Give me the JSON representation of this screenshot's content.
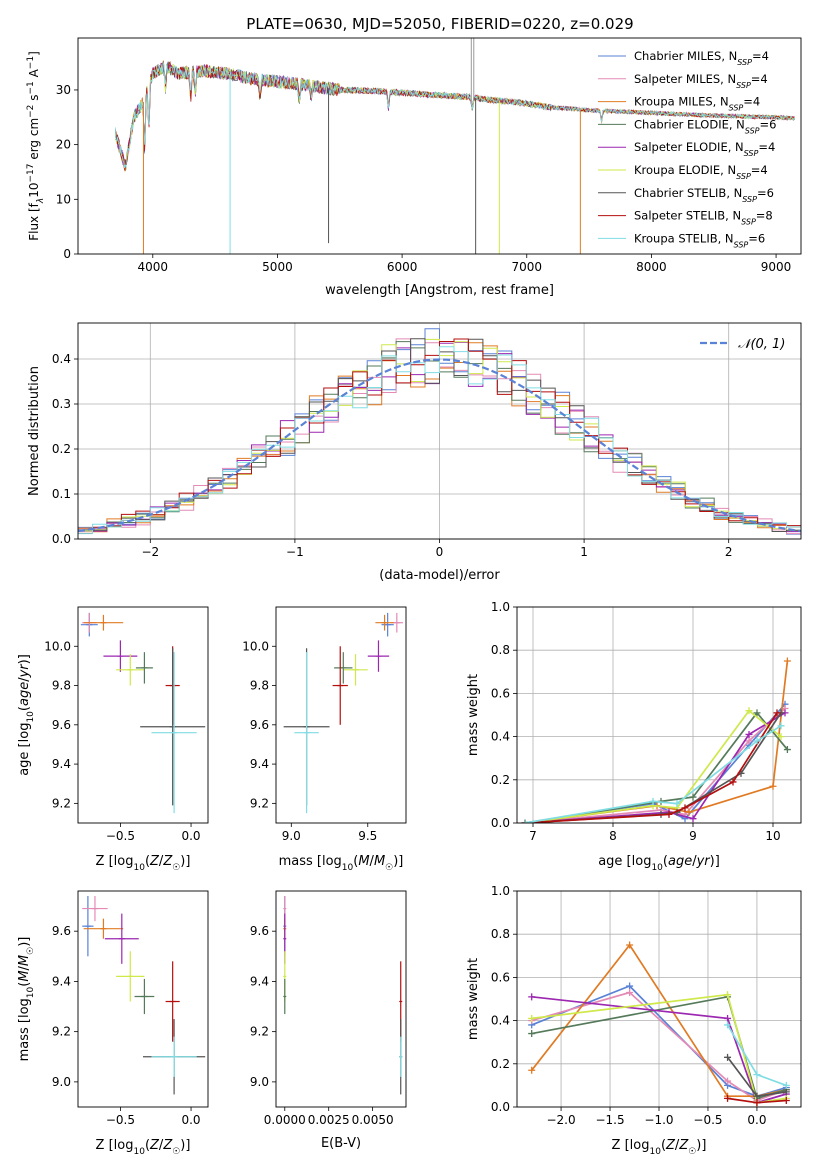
{
  "figure_title": "PLATE=0630, MJD=52050, FIBERID=0220, z=0.029",
  "palette": {
    "Chabrier MILES": "#5a82d6",
    "Salpeter MILES": "#e48ab5",
    "Kroupa MILES": "#e07b24",
    "Chabrier ELODIE": "#557a5a",
    "Salpeter ELODIE": "#9c27b0",
    "Kroupa ELODIE": "#cfe84a",
    "Chabrier STELIB": "#555555",
    "Salpeter STELIB": "#b30f0f",
    "Kroupa STELIB": "#80dde3"
  },
  "chart_data": [
    {
      "id": "spectrum",
      "type": "line",
      "xlabel": "wavelength [Angstrom, rest frame]",
      "ylabel": "Flux [f_λ 10^-17 erg cm^-2 s^-1 A^-1]",
      "xlim": [
        3400,
        9200
      ],
      "ylim": [
        0,
        39.5
      ],
      "xticks": [
        4000,
        5000,
        6000,
        7000,
        8000,
        9000
      ],
      "yticks": [
        0,
        10,
        20,
        30
      ],
      "grid": false,
      "legend_position": "top-right",
      "series": [
        {
          "name": "Chabrier MILES",
          "nssp": "4"
        },
        {
          "name": "Salpeter MILES",
          "nssp": "4"
        },
        {
          "name": "Kroupa MILES",
          "nssp": "4"
        },
        {
          "name": "Chabrier ELODIE",
          "nssp": "6"
        },
        {
          "name": "Salpeter ELODIE",
          "nssp": "4"
        },
        {
          "name": "Kroupa ELODIE",
          "nssp": "4"
        },
        {
          "name": "Chabrier STELIB",
          "nssp": "6"
        },
        {
          "name": "Salpeter STELIB",
          "nssp": "8"
        },
        {
          "name": "Kroupa STELIB",
          "nssp": "6"
        }
      ],
      "continuum": {
        "x": [
          3700,
          3780,
          3850,
          3930,
          4000,
          4100,
          4200,
          4400,
          4600,
          4800,
          5000,
          5200,
          5500,
          5800,
          6000,
          6300,
          6500,
          6700,
          6900,
          7000,
          7200,
          7400,
          7500,
          7800,
          8000,
          8500,
          9000,
          9150
        ],
        "y": [
          22,
          16,
          25,
          28,
          33,
          34.5,
          33,
          33.5,
          33,
          32,
          31.5,
          31,
          30,
          29.8,
          29.5,
          29,
          28.8,
          28.2,
          27.8,
          27.5,
          26.8,
          26.5,
          26.3,
          26,
          25.8,
          25.3,
          25,
          24.8
        ]
      },
      "spikes": [
        {
          "x": 3925,
          "y": 0,
          "series": "Kroupa MILES"
        },
        {
          "x": 4620,
          "y": 0,
          "series": "Kroupa STELIB"
        },
        {
          "x": 5410,
          "y": 2,
          "series": "Chabrier STELIB"
        },
        {
          "x": 6590,
          "y": 0,
          "series": "Chabrier STELIB"
        },
        {
          "x": 6780,
          "y": 0,
          "series": "Kroupa ELODIE"
        },
        {
          "x": 7430,
          "y": 0,
          "series": "Kroupa MILES"
        }
      ]
    },
    {
      "id": "residual-histogram",
      "type": "histogram",
      "xlabel": "(data-model)/error",
      "ylabel": "Normed distribution",
      "xlim": [
        -2.5,
        2.5
      ],
      "ylim": [
        0,
        0.48
      ],
      "xticks": [
        -2,
        -1,
        0,
        1,
        2
      ],
      "yticks": [
        0.0,
        0.1,
        0.2,
        0.3,
        0.4
      ],
      "grid": true,
      "legend_position": "top-right",
      "reference_curve": {
        "name": "𝒩(0, 1)",
        "function": "standard normal pdf"
      },
      "bin_width": 0.1
    },
    {
      "id": "age-vs-Z",
      "type": "errorbar",
      "xlabel": "Z [log10(Z/Z☉)]",
      "ylabel": "age [log10(age/yr)]",
      "xlim": [
        -0.8,
        0.12
      ],
      "ylim": [
        9.1,
        10.2
      ],
      "xticks": [
        -0.5,
        0.0
      ],
      "yticks": [
        9.2,
        9.4,
        9.6,
        9.8,
        10.0
      ],
      "grid": false,
      "points": [
        {
          "series": "Chabrier MILES",
          "x": -0.72,
          "y": 10.11,
          "xerr": 0.06,
          "yerr": 0.06
        },
        {
          "series": "Salpeter MILES",
          "x": -0.72,
          "y": 10.12,
          "xerr": 0.05,
          "yerr": 0.05
        },
        {
          "series": "Kroupa MILES",
          "x": -0.62,
          "y": 10.12,
          "xerr": 0.14,
          "yerr": 0.04
        },
        {
          "series": "Salpeter ELODIE",
          "x": -0.5,
          "y": 9.95,
          "xerr": 0.12,
          "yerr": 0.08
        },
        {
          "series": "Kroupa ELODIE",
          "x": -0.43,
          "y": 9.88,
          "xerr": 0.1,
          "yerr": 0.08
        },
        {
          "series": "Chabrier ELODIE",
          "x": -0.33,
          "y": 9.89,
          "xerr": 0.06,
          "yerr": 0.08
        },
        {
          "series": "Salpeter STELIB",
          "x": -0.13,
          "y": 9.8,
          "xerr": 0.05,
          "yerr": 0.2
        },
        {
          "series": "Chabrier STELIB",
          "x": -0.13,
          "y": 9.59,
          "xerr": 0.23,
          "yerr": 0.4
        },
        {
          "series": "Kroupa STELIB",
          "x": -0.12,
          "y": 9.56,
          "xerr": 0.16,
          "yerr": 0.41
        }
      ]
    },
    {
      "id": "age-vs-mass",
      "type": "errorbar",
      "xlabel": "mass [log10(M/M☉)]",
      "ylabel": "",
      "xlim": [
        8.9,
        9.75
      ],
      "ylim": [
        9.1,
        10.2
      ],
      "xticks": [
        9.0,
        9.5
      ],
      "yticks": [
        9.2,
        9.4,
        9.6,
        9.8,
        10.0
      ],
      "grid": false,
      "points": [
        {
          "series": "Chabrier MILES",
          "x": 9.63,
          "y": 10.11,
          "xerr": 0.04,
          "yerr": 0.06
        },
        {
          "series": "Salpeter MILES",
          "x": 9.69,
          "y": 10.12,
          "xerr": 0.04,
          "yerr": 0.05
        },
        {
          "series": "Kroupa MILES",
          "x": 9.61,
          "y": 10.12,
          "xerr": 0.06,
          "yerr": 0.04
        },
        {
          "series": "Salpeter ELODIE",
          "x": 9.57,
          "y": 9.95,
          "xerr": 0.07,
          "yerr": 0.08
        },
        {
          "series": "Kroupa ELODIE",
          "x": 9.42,
          "y": 9.88,
          "xerr": 0.08,
          "yerr": 0.08
        },
        {
          "series": "Chabrier ELODIE",
          "x": 9.34,
          "y": 9.89,
          "xerr": 0.06,
          "yerr": 0.08
        },
        {
          "series": "Salpeter STELIB",
          "x": 9.32,
          "y": 9.8,
          "xerr": 0.05,
          "yerr": 0.2
        },
        {
          "series": "Chabrier STELIB",
          "x": 9.1,
          "y": 9.59,
          "xerr": 0.15,
          "yerr": 0.4
        },
        {
          "series": "Kroupa STELIB",
          "x": 9.1,
          "y": 9.56,
          "xerr": 0.08,
          "yerr": 0.41
        }
      ]
    },
    {
      "id": "mass-weight-vs-age",
      "type": "line",
      "xlabel": "age [log10(age/yr)]",
      "ylabel": "mass weight",
      "xlim": [
        6.8,
        10.35
      ],
      "ylim": [
        0,
        1.0
      ],
      "xticks": [
        7,
        8,
        9,
        10
      ],
      "yticks": [
        0.0,
        0.2,
        0.4,
        0.6,
        0.8,
        1.0
      ],
      "grid": true,
      "series": [
        {
          "name": "Chabrier MILES",
          "x": [
            6.9,
            8.5,
            8.9,
            9.7,
            10.15
          ],
          "y": [
            0.0,
            0.09,
            0.02,
            0.36,
            0.55
          ]
        },
        {
          "name": "Salpeter MILES",
          "x": [
            6.9,
            8.6,
            8.9,
            9.7,
            10.15
          ],
          "y": [
            0.0,
            0.06,
            0.04,
            0.38,
            0.53
          ]
        },
        {
          "name": "Kroupa MILES",
          "x": [
            6.9,
            8.55,
            8.95,
            10.0,
            10.18
          ],
          "y": [
            0.0,
            0.08,
            0.05,
            0.17,
            0.75
          ]
        },
        {
          "name": "Chabrier ELODIE",
          "x": [
            6.9,
            8.6,
            9.0,
            9.8,
            10.18
          ],
          "y": [
            0.0,
            0.1,
            0.12,
            0.51,
            0.34
          ]
        },
        {
          "name": "Salpeter ELODIE",
          "x": [
            6.9,
            8.7,
            9.0,
            9.7,
            10.15
          ],
          "y": [
            0.0,
            0.05,
            0.02,
            0.41,
            0.51
          ]
        },
        {
          "name": "Kroupa ELODIE",
          "x": [
            6.9,
            8.5,
            8.8,
            9.7,
            10.1
          ],
          "y": [
            0.0,
            0.08,
            0.07,
            0.52,
            0.4
          ]
        },
        {
          "name": "Chabrier STELIB",
          "x": [
            6.9,
            8.6,
            8.8,
            9.6,
            10.1
          ],
          "y": [
            0.0,
            0.04,
            0.05,
            0.23,
            0.51
          ]
        },
        {
          "name": "Salpeter STELIB",
          "x": [
            6.9,
            8.7,
            8.9,
            9.5,
            10.05
          ],
          "y": [
            0.0,
            0.04,
            0.07,
            0.19,
            0.51
          ]
        },
        {
          "name": "Kroupa STELIB",
          "x": [
            6.9,
            8.5,
            8.8,
            9.8,
            10.1
          ],
          "y": [
            0.0,
            0.1,
            0.09,
            0.38,
            0.45
          ]
        }
      ]
    },
    {
      "id": "mass-vs-Z",
      "type": "errorbar",
      "xlabel": "Z [log10(Z/Z☉)]",
      "ylabel": "mass [log10(M/M☉)]",
      "xlim": [
        -0.8,
        0.12
      ],
      "ylim": [
        8.9,
        9.76
      ],
      "xticks": [
        -0.5,
        0.0
      ],
      "yticks": [
        9.0,
        9.2,
        9.4,
        9.6
      ],
      "grid": false,
      "points": [
        {
          "series": "Chabrier MILES",
          "x": -0.73,
          "y": 9.62,
          "xerr": 0.04,
          "yerr": 0.12
        },
        {
          "series": "Salpeter MILES",
          "x": -0.68,
          "y": 9.69,
          "xerr": 0.09,
          "yerr": 0.05
        },
        {
          "series": "Kroupa MILES",
          "x": -0.62,
          "y": 9.61,
          "xerr": 0.14,
          "yerr": 0.04
        },
        {
          "series": "Salpeter ELODIE",
          "x": -0.49,
          "y": 9.57,
          "xerr": 0.12,
          "yerr": 0.1
        },
        {
          "series": "Kroupa ELODIE",
          "x": -0.43,
          "y": 9.42,
          "xerr": 0.1,
          "yerr": 0.1
        },
        {
          "series": "Chabrier ELODIE",
          "x": -0.33,
          "y": 9.34,
          "xerr": 0.07,
          "yerr": 0.07
        },
        {
          "series": "Salpeter STELIB",
          "x": -0.13,
          "y": 9.32,
          "xerr": 0.05,
          "yerr": 0.16
        },
        {
          "series": "Chabrier STELIB",
          "x": -0.12,
          "y": 9.1,
          "xerr": 0.22,
          "yerr": 0.15
        },
        {
          "series": "Kroupa STELIB",
          "x": -0.12,
          "y": 9.1,
          "xerr": 0.16,
          "yerr": 0.08
        }
      ]
    },
    {
      "id": "mass-vs-ebv",
      "type": "errorbar",
      "xlabel": "E(B-V)",
      "ylabel": "",
      "xlim": [
        -0.0005,
        0.0069
      ],
      "ylim": [
        8.9,
        9.76
      ],
      "xticks": [
        0.0,
        0.0025,
        0.005
      ],
      "xtick_labels": [
        "0.0000",
        "0.0025",
        "0.0050"
      ],
      "yticks": [
        9.0,
        9.2,
        9.4,
        9.6
      ],
      "grid": false,
      "points": [
        {
          "series": "Chabrier MILES",
          "x": 0.0,
          "y": 9.62,
          "xerr": 0,
          "yerr": 0.12
        },
        {
          "series": "Salpeter MILES",
          "x": 0.0,
          "y": 9.69,
          "xerr": 0,
          "yerr": 0.05
        },
        {
          "series": "Kroupa MILES",
          "x": 0.0,
          "y": 9.61,
          "xerr": 0,
          "yerr": 0.04
        },
        {
          "series": "Salpeter ELODIE",
          "x": 0.0,
          "y": 9.57,
          "xerr": 0,
          "yerr": 0.1
        },
        {
          "series": "Kroupa ELODIE",
          "x": 0.0,
          "y": 9.42,
          "xerr": 0,
          "yerr": 0.1
        },
        {
          "series": "Chabrier ELODIE",
          "x": 0.0,
          "y": 9.34,
          "xerr": 0,
          "yerr": 0.07
        },
        {
          "series": "Salpeter STELIB",
          "x": 0.0066,
          "y": 9.32,
          "xerr": 0,
          "yerr": 0.16
        },
        {
          "series": "Chabrier STELIB",
          "x": 0.0066,
          "y": 9.1,
          "xerr": 0,
          "yerr": 0.15
        },
        {
          "series": "Kroupa STELIB",
          "x": 0.0066,
          "y": 9.1,
          "xerr": 0,
          "yerr": 0.08
        }
      ]
    },
    {
      "id": "mass-weight-vs-Z",
      "type": "line",
      "xlabel": "Z [log10(Z/Z☉)]",
      "ylabel": "mass weight",
      "xlim": [
        -2.45,
        0.45
      ],
      "ylim": [
        0,
        1.0
      ],
      "xticks": [
        -2.0,
        -1.5,
        -1.0,
        -0.5,
        0.0
      ],
      "yticks": [
        0.0,
        0.2,
        0.4,
        0.6,
        0.8,
        1.0
      ],
      "grid": true,
      "series": [
        {
          "name": "Chabrier MILES",
          "x": [
            -2.3,
            -1.3,
            -0.3,
            0.0,
            0.3
          ],
          "y": [
            0.38,
            0.56,
            0.1,
            0.05,
            0.09
          ]
        },
        {
          "name": "Salpeter MILES",
          "x": [
            -2.3,
            -1.3,
            -0.3,
            0.0,
            0.3
          ],
          "y": [
            0.4,
            0.53,
            0.12,
            0.03,
            0.08
          ]
        },
        {
          "name": "Kroupa MILES",
          "x": [
            -2.3,
            -1.3,
            -0.3,
            0.0,
            0.3
          ],
          "y": [
            0.17,
            0.75,
            0.05,
            0.05,
            0.08
          ]
        },
        {
          "name": "Chabrier ELODIE",
          "x": [
            -2.3,
            -0.3,
            0.0,
            0.3
          ],
          "y": [
            0.34,
            0.51,
            0.04,
            0.08
          ]
        },
        {
          "name": "Salpeter ELODIE",
          "x": [
            -2.3,
            -0.3,
            0.0,
            0.3
          ],
          "y": [
            0.51,
            0.41,
            0.02,
            0.06
          ]
        },
        {
          "name": "Kroupa ELODIE",
          "x": [
            -2.3,
            -0.3,
            0.0,
            0.3
          ],
          "y": [
            0.41,
            0.52,
            0.02,
            0.04
          ]
        },
        {
          "name": "Chabrier STELIB",
          "x": [
            -0.3,
            0.0,
            0.3
          ],
          "y": [
            0.23,
            0.05,
            0.07
          ]
        },
        {
          "name": "Salpeter STELIB",
          "x": [
            -0.3,
            0.0,
            0.3
          ],
          "y": [
            0.04,
            0.02,
            0.03
          ]
        },
        {
          "name": "Kroupa STELIB",
          "x": [
            -0.3,
            0.0,
            0.3
          ],
          "y": [
            0.38,
            0.15,
            0.1
          ]
        }
      ]
    }
  ]
}
